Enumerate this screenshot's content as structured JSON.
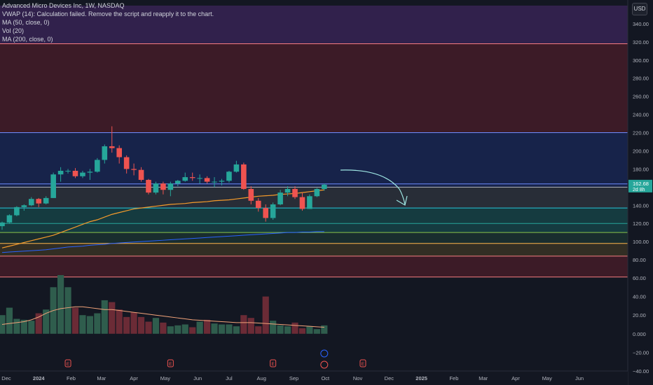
{
  "legend": {
    "title": "Advanced Micro Devices Inc, 1W, NASDAQ",
    "vwap": "VWAP (14): Calculation failed. Remove the script and reapply it to the chart.",
    "ma50": "MA (50, close, 0)",
    "vol": "Vol (20)",
    "ma200": "MA (200, close, 0)"
  },
  "currency": "USD",
  "price_label": {
    "value": "162.68",
    "countdown": "2d 8h"
  },
  "colors": {
    "up": "#26a69a",
    "down": "#ef5350",
    "volume_up": "#2f5d4d",
    "volume_down": "#6b2b36",
    "ma50": "#f59b2b",
    "ma200": "#2962ff",
    "volume_ma": "#f2a37a",
    "arrow": "#9fe7e4"
  },
  "zones": [
    {
      "from": 318,
      "to": 360,
      "color": "#4a2970"
    },
    {
      "from": 220,
      "to": 318,
      "color": "#5e1f2c"
    },
    {
      "from": 160,
      "to": 220,
      "color": "#1b2d6b"
    },
    {
      "from": 137,
      "to": 160,
      "color": "#3a3f48"
    },
    {
      "from": 110,
      "to": 137,
      "color": "#175a5a"
    },
    {
      "from": 98,
      "to": 110,
      "color": "#1f4038"
    },
    {
      "from": 84,
      "to": 98,
      "color": "#4d4227"
    },
    {
      "from": 61,
      "to": 84,
      "color": "#5e1f2c"
    }
  ],
  "levels": [
    {
      "value": 318,
      "color": "#f77c80"
    },
    {
      "value": 220,
      "color": "#6f8cff"
    },
    {
      "value": 163.5,
      "color": "#6f8cff"
    },
    {
      "value": 160,
      "color": "#b2b5be"
    },
    {
      "value": 137,
      "color": "#26c6da"
    },
    {
      "value": 120,
      "color": "#26a69a"
    },
    {
      "value": 110,
      "color": "#8bc34a"
    },
    {
      "value": 98,
      "color": "#ffb74d"
    },
    {
      "value": 84,
      "color": "#f77c80"
    },
    {
      "value": 61,
      "color": "#f77c80"
    }
  ],
  "xaxis_labels": [
    "Dec",
    "2024",
    "Feb",
    "Mar",
    "Apr",
    "May",
    "Jun",
    "Jul",
    "Aug",
    "Sep",
    "Oct",
    "Nov",
    "Dec",
    "2025",
    "Feb",
    "Mar",
    "Apr",
    "May",
    "Jun"
  ],
  "chart_data": {
    "type": "candlestick",
    "title": "Advanced Micro Devices Inc, 1W, NASDAQ",
    "price_ylim": [
      60,
      360
    ],
    "price_ticks": [
      340,
      320,
      300,
      280,
      260,
      240,
      220,
      200,
      180,
      160,
      140,
      120,
      100,
      80,
      60
    ],
    "volume_ylim": [
      -40,
      60
    ],
    "volume_ticks": [
      60,
      40,
      20,
      0,
      -20,
      -40
    ],
    "volume_tick_labels": [
      "60.00",
      "40.00",
      "20.00",
      "0.000",
      "−20.00",
      "−40.00"
    ],
    "week_start": "2023-11-27",
    "candles": [
      {
        "o": 117,
        "h": 122,
        "l": 113,
        "c": 121
      },
      {
        "o": 121,
        "h": 130,
        "l": 120,
        "c": 129
      },
      {
        "o": 129,
        "h": 139,
        "l": 128,
        "c": 138
      },
      {
        "o": 138,
        "h": 141,
        "l": 134,
        "c": 140
      },
      {
        "o": 140,
        "h": 149,
        "l": 139,
        "c": 147
      },
      {
        "o": 147,
        "h": 148,
        "l": 138,
        "c": 142
      },
      {
        "o": 142,
        "h": 150,
        "l": 141,
        "c": 148
      },
      {
        "o": 148,
        "h": 176,
        "l": 148,
        "c": 174
      },
      {
        "o": 174,
        "h": 182,
        "l": 166,
        "c": 178
      },
      {
        "o": 178,
        "h": 180,
        "l": 175,
        "c": 178
      },
      {
        "o": 178,
        "h": 181,
        "l": 170,
        "c": 172
      },
      {
        "o": 172,
        "h": 178,
        "l": 170,
        "c": 176
      },
      {
        "o": 176,
        "h": 180,
        "l": 168,
        "c": 177
      },
      {
        "o": 177,
        "h": 192,
        "l": 176,
        "c": 190
      },
      {
        "o": 190,
        "h": 207,
        "l": 186,
        "c": 205
      },
      {
        "o": 205,
        "h": 227,
        "l": 198,
        "c": 203
      },
      {
        "o": 203,
        "h": 206,
        "l": 186,
        "c": 193
      },
      {
        "o": 193,
        "h": 195,
        "l": 175,
        "c": 180
      },
      {
        "o": 180,
        "h": 186,
        "l": 173,
        "c": 179
      },
      {
        "o": 179,
        "h": 182,
        "l": 166,
        "c": 168
      },
      {
        "o": 168,
        "h": 169,
        "l": 152,
        "c": 154
      },
      {
        "o": 154,
        "h": 166,
        "l": 152,
        "c": 164
      },
      {
        "o": 164,
        "h": 166,
        "l": 152,
        "c": 157
      },
      {
        "o": 157,
        "h": 166,
        "l": 150,
        "c": 164
      },
      {
        "o": 164,
        "h": 168,
        "l": 161,
        "c": 167
      },
      {
        "o": 167,
        "h": 176,
        "l": 166,
        "c": 171
      },
      {
        "o": 171,
        "h": 176,
        "l": 167,
        "c": 170
      },
      {
        "o": 170,
        "h": 174,
        "l": 164,
        "c": 170
      },
      {
        "o": 170,
        "h": 172,
        "l": 164,
        "c": 166
      },
      {
        "o": 166,
        "h": 171,
        "l": 160,
        "c": 166
      },
      {
        "o": 166,
        "h": 169,
        "l": 162,
        "c": 167
      },
      {
        "o": 167,
        "h": 178,
        "l": 165,
        "c": 177
      },
      {
        "o": 177,
        "h": 189,
        "l": 176,
        "c": 185
      },
      {
        "o": 185,
        "h": 187,
        "l": 157,
        "c": 158
      },
      {
        "o": 158,
        "h": 161,
        "l": 141,
        "c": 145
      },
      {
        "o": 145,
        "h": 148,
        "l": 133,
        "c": 137
      },
      {
        "o": 137,
        "h": 141,
        "l": 122,
        "c": 126
      },
      {
        "o": 126,
        "h": 143,
        "l": 124,
        "c": 141
      },
      {
        "o": 141,
        "h": 157,
        "l": 140,
        "c": 154
      },
      {
        "o": 154,
        "h": 161,
        "l": 150,
        "c": 158
      },
      {
        "o": 158,
        "h": 161,
        "l": 147,
        "c": 149
      },
      {
        "o": 149,
        "h": 154,
        "l": 134,
        "c": 136
      },
      {
        "o": 136,
        "h": 152,
        "l": 136,
        "c": 150
      },
      {
        "o": 150,
        "h": 159,
        "l": 149,
        "c": 158
      },
      {
        "o": 158,
        "h": 164,
        "l": 156,
        "c": 162.68
      }
    ],
    "volume": [
      20,
      28,
      16,
      15,
      14,
      22,
      26,
      50,
      63,
      50,
      28,
      20,
      19,
      22,
      36,
      34,
      26,
      18,
      23,
      18,
      13,
      17,
      12,
      8,
      9,
      10,
      7,
      13,
      15,
      11,
      10,
      10,
      8,
      20,
      17,
      8,
      40,
      14,
      9,
      8,
      12,
      6,
      8,
      5,
      9
    ],
    "ma50": [
      93,
      95,
      97,
      99,
      101,
      103,
      105,
      107,
      110,
      113,
      116,
      119,
      122,
      124,
      127,
      130,
      132,
      134,
      136,
      137,
      138,
      139,
      140,
      141,
      141.5,
      142,
      143,
      143.5,
      144,
      145,
      145.5,
      146,
      147,
      148,
      149,
      150,
      150.5,
      151,
      152,
      152.5,
      153,
      154,
      155,
      156,
      157
    ],
    "ma200": [
      88,
      88.5,
      89,
      89.5,
      90,
      90.5,
      91,
      92,
      93,
      94,
      94.5,
      95,
      96,
      96.5,
      97,
      98,
      98.5,
      99,
      99.5,
      100,
      100.5,
      101,
      101.5,
      102,
      102.5,
      103,
      103.5,
      104,
      104.5,
      105,
      105.5,
      106,
      106.5,
      107,
      107.5,
      108,
      108.5,
      109,
      109.5,
      110,
      110,
      110.5,
      110.5,
      111,
      111
    ],
    "volume_ma": [
      10,
      11,
      12,
      13,
      15,
      18,
      22,
      25,
      27,
      28,
      29,
      29,
      28,
      27,
      26,
      26,
      25,
      24,
      23,
      22,
      21,
      20,
      19,
      18,
      17,
      16,
      15,
      14.5,
      14,
      13.5,
      13,
      12.5,
      12,
      12,
      12,
      11.5,
      11,
      10.5,
      10,
      9.5,
      9,
      8.5,
      8,
      7.5,
      7
    ]
  }
}
